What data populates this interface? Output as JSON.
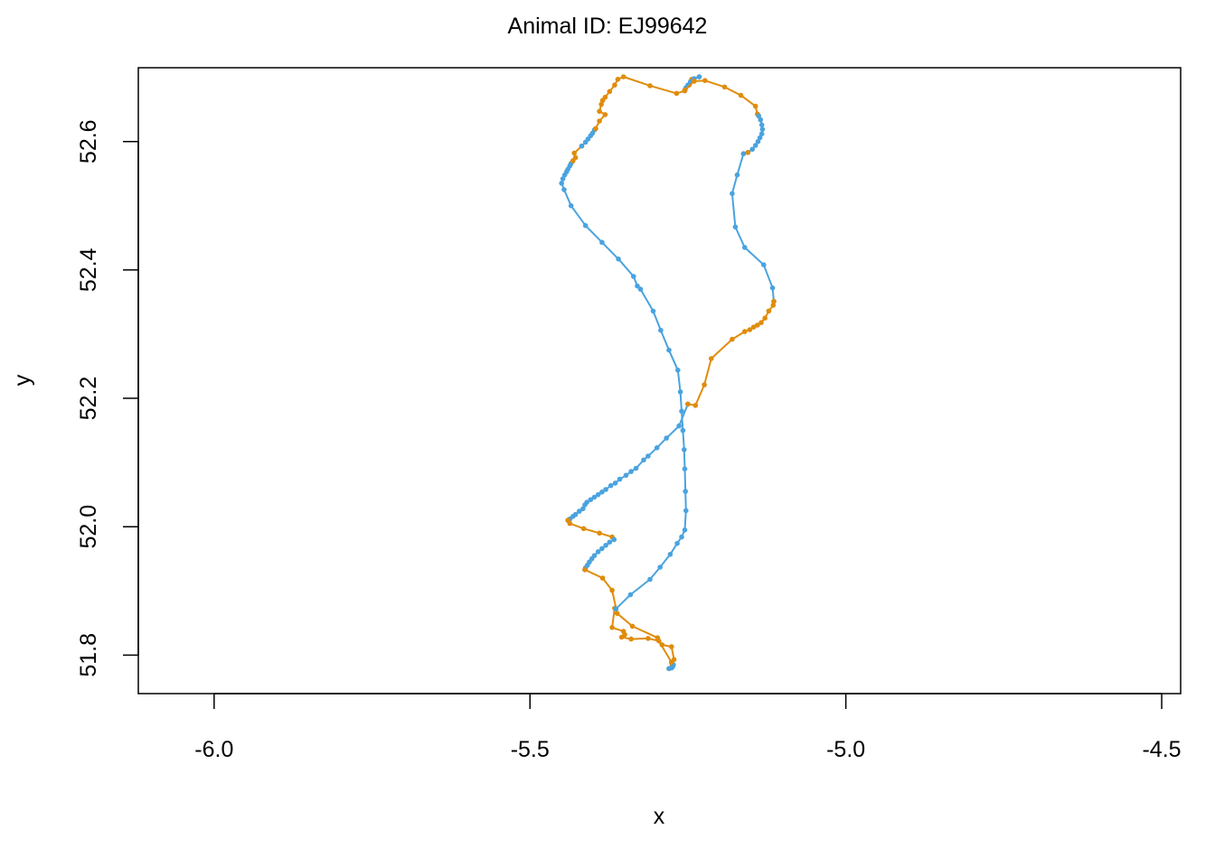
{
  "chart_data": {
    "type": "line",
    "title": "Animal ID: EJ99642",
    "xlabel": "x",
    "ylabel": "y",
    "xlim": [
      -6.12,
      -4.47
    ],
    "ylim": [
      51.74,
      52.715
    ],
    "x_ticks": [
      -6.0,
      -5.5,
      -5.0,
      -4.5
    ],
    "x_tick_labels": [
      "-6.0",
      "-5.5",
      "-5.0",
      "-4.5"
    ],
    "y_ticks": [
      51.8,
      52.0,
      52.2,
      52.4,
      52.6
    ],
    "y_tick_labels": [
      "51.8",
      "52.0",
      "52.2",
      "52.4",
      "52.6"
    ],
    "grid": false,
    "colors": {
      "blue": "#4aa3df",
      "orange": "#e08c0b"
    },
    "series": [
      {
        "color": "blue",
        "points": [
          [
            -5.25,
            52.191
          ],
          [
            -5.264,
            52.157
          ],
          [
            -5.284,
            52.138
          ],
          [
            -5.299,
            52.123
          ],
          [
            -5.313,
            52.11
          ],
          [
            -5.32,
            52.104
          ],
          [
            -5.332,
            52.091
          ],
          [
            -5.34,
            52.086
          ],
          [
            -5.348,
            52.08
          ],
          [
            -5.358,
            52.074
          ],
          [
            -5.365,
            52.068
          ],
          [
            -5.372,
            52.064
          ],
          [
            -5.38,
            52.058
          ],
          [
            -5.386,
            52.054
          ],
          [
            -5.392,
            52.05
          ],
          [
            -5.398,
            52.046
          ],
          [
            -5.404,
            52.042
          ],
          [
            -5.41,
            52.038
          ],
          [
            -5.413,
            52.034
          ],
          [
            -5.416,
            52.028
          ],
          [
            -5.422,
            52.024
          ],
          [
            -5.428,
            52.019
          ],
          [
            -5.432,
            52.016
          ],
          [
            -5.437,
            52.012
          ],
          [
            -5.44,
            52.01
          ]
        ]
      },
      {
        "color": "orange",
        "points": [
          [
            -5.44,
            52.01
          ],
          [
            -5.437,
            52.005
          ],
          [
            -5.415,
            51.997
          ],
          [
            -5.39,
            51.99
          ],
          [
            -5.37,
            51.984
          ],
          [
            -5.367,
            51.98
          ]
        ]
      },
      {
        "color": "blue",
        "points": [
          [
            -5.367,
            51.98
          ],
          [
            -5.374,
            51.976
          ],
          [
            -5.38,
            51.971
          ],
          [
            -5.386,
            51.966
          ],
          [
            -5.392,
            51.961
          ],
          [
            -5.398,
            51.955
          ],
          [
            -5.402,
            51.95
          ],
          [
            -5.406,
            51.945
          ],
          [
            -5.409,
            51.94
          ],
          [
            -5.412,
            51.936
          ],
          [
            -5.413,
            51.933
          ]
        ]
      },
      {
        "color": "orange",
        "points": [
          [
            -5.413,
            51.933
          ],
          [
            -5.385,
            51.92
          ],
          [
            -5.37,
            51.901
          ],
          [
            -5.362,
            51.865
          ],
          [
            -5.338,
            51.845
          ],
          [
            -5.298,
            51.827
          ],
          [
            -5.291,
            51.816
          ],
          [
            -5.276,
            51.813
          ],
          [
            -5.272,
            51.793
          ],
          [
            -5.275,
            51.785
          ],
          [
            -5.28,
            51.779
          ]
        ]
      },
      {
        "color": "blue",
        "points": [
          [
            -5.28,
            51.779
          ],
          [
            -5.276,
            51.78
          ],
          [
            -5.274,
            51.782
          ],
          [
            -5.273,
            51.785
          ],
          [
            -5.276,
            51.789
          ]
        ]
      },
      {
        "color": "orange",
        "points": [
          [
            -5.276,
            51.789
          ],
          [
            -5.296,
            51.822
          ],
          [
            -5.313,
            51.826
          ],
          [
            -5.34,
            51.825
          ],
          [
            -5.355,
            51.828
          ],
          [
            -5.35,
            51.832
          ],
          [
            -5.352,
            51.837
          ],
          [
            -5.37,
            51.843
          ],
          [
            -5.366,
            51.873
          ],
          [
            -5.364,
            51.872
          ]
        ]
      },
      {
        "color": "blue",
        "points": [
          [
            -5.364,
            51.872
          ],
          [
            -5.341,
            51.894
          ],
          [
            -5.31,
            51.918
          ],
          [
            -5.294,
            51.937
          ],
          [
            -5.278,
            51.957
          ],
          [
            -5.267,
            51.974
          ],
          [
            -5.26,
            51.984
          ],
          [
            -5.255,
            51.995
          ],
          [
            -5.253,
            52.025
          ],
          [
            -5.254,
            52.055
          ],
          [
            -5.255,
            52.09
          ],
          [
            -5.256,
            52.12
          ],
          [
            -5.258,
            52.15
          ],
          [
            -5.26,
            52.18
          ],
          [
            -5.262,
            52.21
          ],
          [
            -5.266,
            52.244
          ],
          [
            -5.28,
            52.275
          ],
          [
            -5.293,
            52.306
          ],
          [
            -5.305,
            52.336
          ],
          [
            -5.325,
            52.37
          ],
          [
            -5.33,
            52.375
          ],
          [
            -5.336,
            52.39
          ],
          [
            -5.36,
            52.417
          ],
          [
            -5.386,
            52.443
          ],
          [
            -5.412,
            52.469
          ],
          [
            -5.435,
            52.5
          ],
          [
            -5.446,
            52.525
          ],
          [
            -5.45,
            52.535
          ],
          [
            -5.448,
            52.542
          ],
          [
            -5.445,
            52.548
          ],
          [
            -5.442,
            52.553
          ],
          [
            -5.44,
            52.557
          ],
          [
            -5.437,
            52.562
          ],
          [
            -5.435,
            52.566
          ],
          [
            -5.432,
            52.57
          ]
        ]
      },
      {
        "color": "orange",
        "points": [
          [
            -5.432,
            52.57
          ],
          [
            -5.428,
            52.575
          ],
          [
            -5.43,
            52.582
          ],
          [
            -5.418,
            52.593
          ]
        ]
      },
      {
        "color": "blue",
        "points": [
          [
            -5.418,
            52.593
          ],
          [
            -5.412,
            52.599
          ],
          [
            -5.408,
            52.604
          ],
          [
            -5.404,
            52.609
          ],
          [
            -5.401,
            52.613
          ],
          [
            -5.398,
            52.618
          ],
          [
            -5.396,
            52.62
          ]
        ]
      },
      {
        "color": "orange",
        "points": [
          [
            -5.396,
            52.62
          ],
          [
            -5.39,
            52.632
          ],
          [
            -5.381,
            52.642
          ],
          [
            -5.39,
            52.647
          ],
          [
            -5.387,
            52.658
          ],
          [
            -5.385,
            52.664
          ],
          [
            -5.381,
            52.669
          ],
          [
            -5.374,
            52.678
          ],
          [
            -5.366,
            52.688
          ],
          [
            -5.361,
            52.697
          ],
          [
            -5.352,
            52.701
          ],
          [
            -5.31,
            52.687
          ],
          [
            -5.268,
            52.675
          ],
          [
            -5.255,
            52.679
          ],
          [
            -5.248,
            52.688
          ],
          [
            -5.244,
            52.697
          ],
          [
            -5.232,
            52.701
          ]
        ]
      },
      {
        "color": "blue",
        "points": [
          [
            -5.232,
            52.701
          ],
          [
            -5.24,
            52.698
          ],
          [
            -5.246,
            52.693
          ],
          [
            -5.25,
            52.688
          ],
          [
            -5.253,
            52.684
          ],
          [
            -5.255,
            52.68
          ]
        ]
      },
      {
        "color": "orange",
        "points": [
          [
            -5.255,
            52.68
          ],
          [
            -5.24,
            52.694
          ],
          [
            -5.223,
            52.695
          ],
          [
            -5.192,
            52.685
          ],
          [
            -5.166,
            52.672
          ],
          [
            -5.143,
            52.655
          ],
          [
            -5.14,
            52.643
          ],
          [
            -5.138,
            52.64
          ]
        ]
      },
      {
        "color": "blue",
        "points": [
          [
            -5.138,
            52.64
          ],
          [
            -5.135,
            52.634
          ],
          [
            -5.133,
            52.626
          ],
          [
            -5.132,
            52.619
          ],
          [
            -5.133,
            52.612
          ],
          [
            -5.136,
            52.606
          ],
          [
            -5.139,
            52.6
          ],
          [
            -5.143,
            52.594
          ],
          [
            -5.148,
            52.588
          ],
          [
            -5.155,
            52.583
          ]
        ]
      },
      {
        "color": "orange",
        "points": [
          [
            -5.155,
            52.583
          ],
          [
            -5.162,
            52.581
          ]
        ]
      },
      {
        "color": "blue",
        "points": [
          [
            -5.162,
            52.581
          ],
          [
            -5.172,
            52.548
          ],
          [
            -5.18,
            52.519
          ],
          [
            -5.175,
            52.467
          ],
          [
            -5.16,
            52.435
          ],
          [
            -5.13,
            52.408
          ],
          [
            -5.116,
            52.372
          ],
          [
            -5.114,
            52.351
          ]
        ]
      },
      {
        "color": "orange",
        "points": [
          [
            -5.114,
            52.351
          ],
          [
            -5.115,
            52.345
          ],
          [
            -5.122,
            52.336
          ],
          [
            -5.128,
            52.325
          ],
          [
            -5.134,
            52.318
          ],
          [
            -5.14,
            52.314
          ],
          [
            -5.146,
            52.311
          ],
          [
            -5.152,
            52.307
          ],
          [
            -5.16,
            52.304
          ],
          [
            -5.18,
            52.292
          ],
          [
            -5.213,
            52.262
          ],
          [
            -5.224,
            52.221
          ],
          [
            -5.238,
            52.189
          ],
          [
            -5.25,
            52.191
          ]
        ]
      }
    ]
  }
}
